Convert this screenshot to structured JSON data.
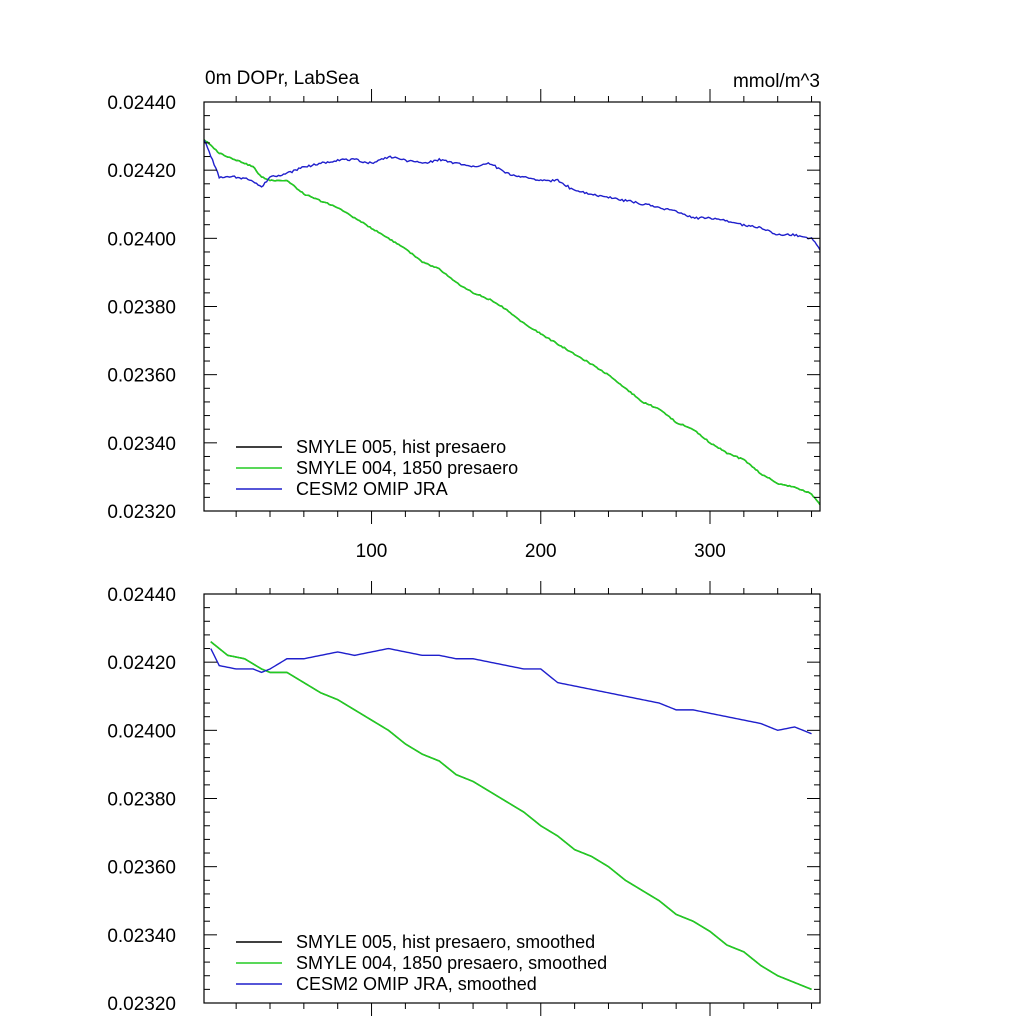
{
  "chart_data": [
    {
      "type": "line",
      "title": "0m DOPr, LabSea",
      "units": "mmol/m^3",
      "xlabel": "",
      "ylabel": "",
      "xlim": [
        1,
        365
      ],
      "ylim": [
        0.0232,
        0.0244
      ],
      "x_ticks": [
        100,
        200,
        300
      ],
      "x_tick_labels": [
        "100",
        "200",
        "300"
      ],
      "y_ticks": [
        0.0232,
        0.0234,
        0.0236,
        0.0238,
        0.024,
        0.0242,
        0.0244
      ],
      "y_tick_labels": [
        "0.02320",
        "0.02340",
        "0.02360",
        "0.02380",
        "0.02400",
        "0.02420",
        "0.02440"
      ],
      "legend_position": "bottom-left",
      "series": [
        {
          "name": "SMYLE 005, hist presaero",
          "color": "#000000",
          "x": [
            1,
            10,
            20,
            30,
            35,
            40,
            50,
            60,
            70,
            80,
            90,
            100,
            110,
            120,
            130,
            140,
            150,
            160,
            170,
            180,
            190,
            200,
            210,
            220,
            230,
            240,
            250,
            260,
            270,
            280,
            290,
            300,
            310,
            320,
            330,
            340,
            350,
            360,
            365
          ],
          "y": [
            0.02429,
            0.02425,
            0.02423,
            0.02421,
            0.02418,
            0.02417,
            0.02417,
            0.02413,
            0.02411,
            0.02409,
            0.02406,
            0.02403,
            0.024,
            0.02397,
            0.02393,
            0.02391,
            0.02387,
            0.02384,
            0.02382,
            0.02379,
            0.02375,
            0.02372,
            0.02369,
            0.02366,
            0.02363,
            0.0236,
            0.02356,
            0.02352,
            0.0235,
            0.02346,
            0.02344,
            0.0234,
            0.02337,
            0.02335,
            0.02331,
            0.02328,
            0.02327,
            0.02325,
            0.02322
          ]
        },
        {
          "name": "SMYLE 004, 1850 presaero",
          "color": "#22cc22",
          "x": [
            1,
            10,
            20,
            30,
            35,
            40,
            50,
            60,
            70,
            80,
            90,
            100,
            110,
            120,
            130,
            140,
            150,
            160,
            170,
            180,
            190,
            200,
            210,
            220,
            230,
            240,
            250,
            260,
            270,
            280,
            290,
            300,
            310,
            320,
            330,
            340,
            350,
            360,
            365
          ],
          "y": [
            0.02429,
            0.02425,
            0.02423,
            0.02421,
            0.02418,
            0.02417,
            0.02417,
            0.02413,
            0.02411,
            0.02409,
            0.02406,
            0.02403,
            0.024,
            0.02397,
            0.02393,
            0.02391,
            0.02387,
            0.02384,
            0.02382,
            0.02379,
            0.02375,
            0.02372,
            0.02369,
            0.02366,
            0.02363,
            0.0236,
            0.02356,
            0.02352,
            0.0235,
            0.02346,
            0.02344,
            0.0234,
            0.02337,
            0.02335,
            0.02331,
            0.02328,
            0.02327,
            0.02325,
            0.02322
          ]
        },
        {
          "name": "CESM2 OMIP JRA",
          "color": "#1f1fcc",
          "x": [
            1,
            10,
            20,
            30,
            35,
            40,
            50,
            60,
            70,
            80,
            90,
            100,
            110,
            120,
            130,
            140,
            150,
            160,
            170,
            180,
            190,
            200,
            210,
            220,
            230,
            240,
            250,
            260,
            270,
            280,
            290,
            300,
            310,
            320,
            330,
            340,
            350,
            360,
            365
          ],
          "y": [
            0.02429,
            0.02418,
            0.02418,
            0.02417,
            0.02415,
            0.02418,
            0.02419,
            0.02421,
            0.02422,
            0.02423,
            0.02423,
            0.02422,
            0.02424,
            0.02423,
            0.02422,
            0.02423,
            0.02422,
            0.02421,
            0.02422,
            0.02419,
            0.02418,
            0.02417,
            0.02417,
            0.02414,
            0.02413,
            0.02412,
            0.02411,
            0.0241,
            0.02409,
            0.02408,
            0.02406,
            0.02406,
            0.02405,
            0.02404,
            0.02403,
            0.02401,
            0.02401,
            0.024,
            0.02397
          ]
        }
      ]
    },
    {
      "type": "line",
      "title": "",
      "xlabel": "",
      "ylabel": "",
      "xlim": [
        1,
        365
      ],
      "ylim": [
        0.0232,
        0.0244
      ],
      "x_ticks": [
        100,
        200,
        300
      ],
      "x_tick_labels": [],
      "y_ticks": [
        0.0232,
        0.0234,
        0.0236,
        0.0238,
        0.024,
        0.0242,
        0.0244
      ],
      "y_tick_labels": [
        "0.02320",
        "0.02340",
        "0.02360",
        "0.02380",
        "0.02400",
        "0.02420",
        "0.02440"
      ],
      "legend_position": "bottom-left",
      "series": [
        {
          "name": "SMYLE 005, hist presaero, smoothed",
          "color": "#000000",
          "x": [
            5,
            15,
            25,
            35,
            40,
            50,
            60,
            70,
            80,
            90,
            100,
            110,
            120,
            130,
            140,
            150,
            160,
            170,
            180,
            190,
            200,
            210,
            220,
            230,
            240,
            250,
            260,
            270,
            280,
            290,
            300,
            310,
            320,
            330,
            340,
            350,
            360
          ],
          "y": [
            0.02426,
            0.02422,
            0.02421,
            0.02418,
            0.02417,
            0.02417,
            0.02414,
            0.02411,
            0.02409,
            0.02406,
            0.02403,
            0.024,
            0.02396,
            0.02393,
            0.02391,
            0.02387,
            0.02385,
            0.02382,
            0.02379,
            0.02376,
            0.02372,
            0.02369,
            0.02365,
            0.02363,
            0.0236,
            0.02356,
            0.02353,
            0.0235,
            0.02346,
            0.02344,
            0.02341,
            0.02337,
            0.02335,
            0.02331,
            0.02328,
            0.02326,
            0.02324
          ]
        },
        {
          "name": "SMYLE 004, 1850 presaero, smoothed",
          "color": "#22cc22",
          "x": [
            5,
            15,
            25,
            35,
            40,
            50,
            60,
            70,
            80,
            90,
            100,
            110,
            120,
            130,
            140,
            150,
            160,
            170,
            180,
            190,
            200,
            210,
            220,
            230,
            240,
            250,
            260,
            270,
            280,
            290,
            300,
            310,
            320,
            330,
            340,
            350,
            360
          ],
          "y": [
            0.02426,
            0.02422,
            0.02421,
            0.02418,
            0.02417,
            0.02417,
            0.02414,
            0.02411,
            0.02409,
            0.02406,
            0.02403,
            0.024,
            0.02396,
            0.02393,
            0.02391,
            0.02387,
            0.02385,
            0.02382,
            0.02379,
            0.02376,
            0.02372,
            0.02369,
            0.02365,
            0.02363,
            0.0236,
            0.02356,
            0.02353,
            0.0235,
            0.02346,
            0.02344,
            0.02341,
            0.02337,
            0.02335,
            0.02331,
            0.02328,
            0.02326,
            0.02324
          ]
        },
        {
          "name": "CESM2 OMIP JRA, smoothed",
          "color": "#1f1fcc",
          "x": [
            5,
            10,
            20,
            30,
            35,
            40,
            50,
            60,
            70,
            80,
            90,
            100,
            110,
            120,
            130,
            140,
            150,
            160,
            170,
            180,
            190,
            200,
            210,
            220,
            230,
            240,
            250,
            260,
            270,
            280,
            290,
            300,
            310,
            320,
            330,
            340,
            350,
            360
          ],
          "y": [
            0.02424,
            0.02419,
            0.02418,
            0.02418,
            0.02417,
            0.02418,
            0.02421,
            0.02421,
            0.02422,
            0.02423,
            0.02422,
            0.02423,
            0.02424,
            0.02423,
            0.02422,
            0.02422,
            0.02421,
            0.02421,
            0.0242,
            0.02419,
            0.02418,
            0.02418,
            0.02414,
            0.02413,
            0.02412,
            0.02411,
            0.0241,
            0.02409,
            0.02408,
            0.02406,
            0.02406,
            0.02405,
            0.02404,
            0.02403,
            0.02402,
            0.024,
            0.02401,
            0.02399
          ]
        }
      ]
    }
  ]
}
